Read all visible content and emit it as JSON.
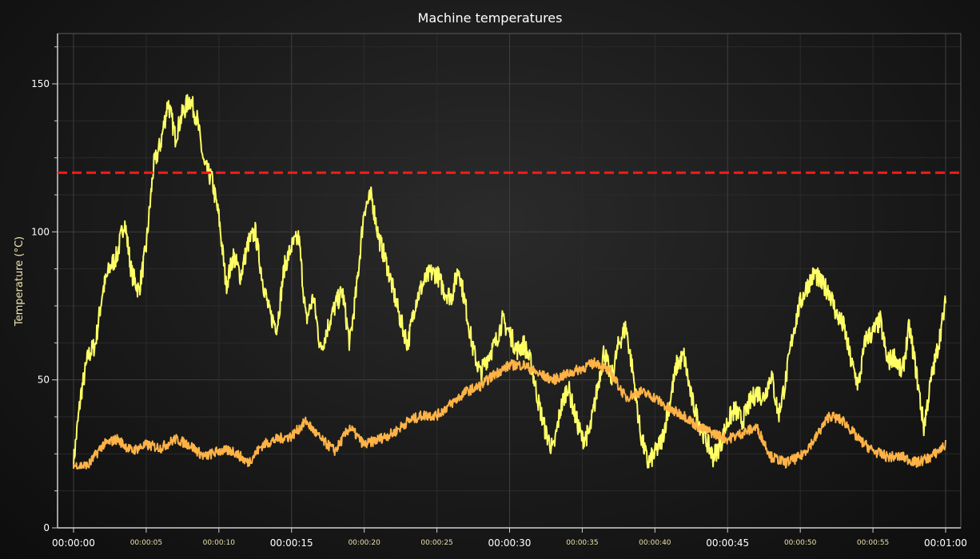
{
  "chart_data": {
    "type": "line",
    "title": "Machine temperatures",
    "xlabel": "",
    "ylabel": "Temperature (°C)",
    "xlim": [
      0,
      60
    ],
    "ylim": [
      0,
      167
    ],
    "yticks": [
      0,
      50,
      100,
      150
    ],
    "xticks": [
      {
        "t": 0,
        "label": "00:00:00",
        "major": true
      },
      {
        "t": 5,
        "label": "00:00:05",
        "major": false
      },
      {
        "t": 10,
        "label": "00:00:10",
        "major": false
      },
      {
        "t": 15,
        "label": "00:00:15",
        "major": true
      },
      {
        "t": 20,
        "label": "00:00:20",
        "major": false
      },
      {
        "t": 25,
        "label": "00:00:25",
        "major": false
      },
      {
        "t": 30,
        "label": "00:00:30",
        "major": true
      },
      {
        "t": 35,
        "label": "00:00:35",
        "major": false
      },
      {
        "t": 40,
        "label": "00:00:40",
        "major": false
      },
      {
        "t": 45,
        "label": "00:00:45",
        "major": true
      },
      {
        "t": 50,
        "label": "00:00:50",
        "major": false
      },
      {
        "t": 55,
        "label": "00:00:55",
        "major": false
      },
      {
        "t": 60,
        "label": "00:01:00",
        "major": true
      }
    ],
    "grid": true,
    "threshold": {
      "y": 120,
      "color": "#ff1a1a",
      "style": "dashed"
    },
    "series": [
      {
        "color": "#ffff66",
        "x": [
          0,
          0.5,
          1,
          1.5,
          2,
          2.5,
          3,
          3.5,
          4,
          4.5,
          5,
          5.5,
          6,
          6.5,
          7,
          7.5,
          8,
          8.5,
          9,
          9.5,
          10,
          10.5,
          11,
          11.5,
          12,
          12.5,
          13,
          13.5,
          14,
          14.5,
          15,
          15.5,
          16,
          16.5,
          17,
          17.5,
          18,
          18.5,
          19,
          19.5,
          20,
          20.5,
          21,
          21.5,
          22,
          22.5,
          23,
          23.5,
          24,
          24.5,
          25,
          25.5,
          26,
          26.5,
          27,
          27.5,
          28,
          28.5,
          29,
          29.5,
          30,
          30.5,
          31,
          31.5,
          32,
          32.5,
          33,
          33.5,
          34,
          34.5,
          35,
          35.5,
          36,
          36.5,
          37,
          37.5,
          38,
          38.5,
          39,
          39.5,
          40,
          40.5,
          41,
          41.5,
          42,
          42.5,
          43,
          43.5,
          44,
          44.5,
          45,
          45.5,
          46,
          46.5,
          47,
          47.5,
          48,
          48.5,
          49,
          49.5,
          50,
          50.5,
          51,
          51.5,
          52,
          52.5,
          53,
          53.5,
          54,
          54.5,
          55,
          55.5,
          56,
          56.5,
          57,
          57.5,
          58,
          58.5,
          59,
          59.5,
          60
        ],
        "values": [
          22,
          45,
          58,
          62,
          80,
          88,
          92,
          104,
          86,
          80,
          95,
          122,
          130,
          144,
          132,
          140,
          145,
          138,
          122,
          118,
          105,
          82,
          92,
          85,
          96,
          100,
          84,
          72,
          68,
          88,
          95,
          98,
          70,
          78,
          60,
          68,
          75,
          80,
          62,
          82,
          108,
          112,
          98,
          90,
          80,
          70,
          62,
          76,
          82,
          86,
          86,
          80,
          78,
          88,
          74,
          60,
          52,
          58,
          62,
          70,
          66,
          60,
          62,
          55,
          42,
          32,
          26,
          40,
          48,
          38,
          30,
          32,
          46,
          60,
          50,
          62,
          68,
          52,
          32,
          22,
          25,
          30,
          42,
          55,
          58,
          44,
          36,
          30,
          24,
          28,
          36,
          40,
          36,
          42,
          46,
          44,
          52,
          38,
          50,
          66,
          76,
          82,
          86,
          82,
          80,
          72,
          68,
          56,
          48,
          64,
          66,
          70,
          56,
          58,
          52,
          68,
          52,
          34,
          50,
          62,
          76
        ]
      },
      {
        "color": "#ffb347",
        "x": [
          0,
          1,
          2,
          3,
          4,
          5,
          6,
          7,
          8,
          9,
          10,
          11,
          12,
          13,
          14,
          15,
          16,
          17,
          18,
          19,
          20,
          21,
          22,
          23,
          24,
          25,
          26,
          27,
          28,
          29,
          30,
          31,
          32,
          33,
          34,
          35,
          36,
          37,
          38,
          39,
          40,
          41,
          42,
          43,
          44,
          45,
          46,
          47,
          48,
          49,
          50,
          51,
          52,
          53,
          54,
          55,
          56,
          57,
          58,
          59,
          60
        ],
        "values": [
          21,
          21,
          28,
          30,
          26,
          28,
          27,
          30,
          28,
          24,
          26,
          26,
          22,
          28,
          30,
          31,
          36,
          30,
          26,
          34,
          28,
          30,
          32,
          36,
          38,
          38,
          42,
          46,
          48,
          52,
          55,
          55,
          52,
          50,
          52,
          54,
          56,
          52,
          44,
          46,
          44,
          40,
          38,
          34,
          32,
          30,
          32,
          34,
          24,
          22,
          24,
          30,
          38,
          36,
          30,
          26,
          24,
          24,
          22,
          24,
          28
        ]
      }
    ]
  }
}
